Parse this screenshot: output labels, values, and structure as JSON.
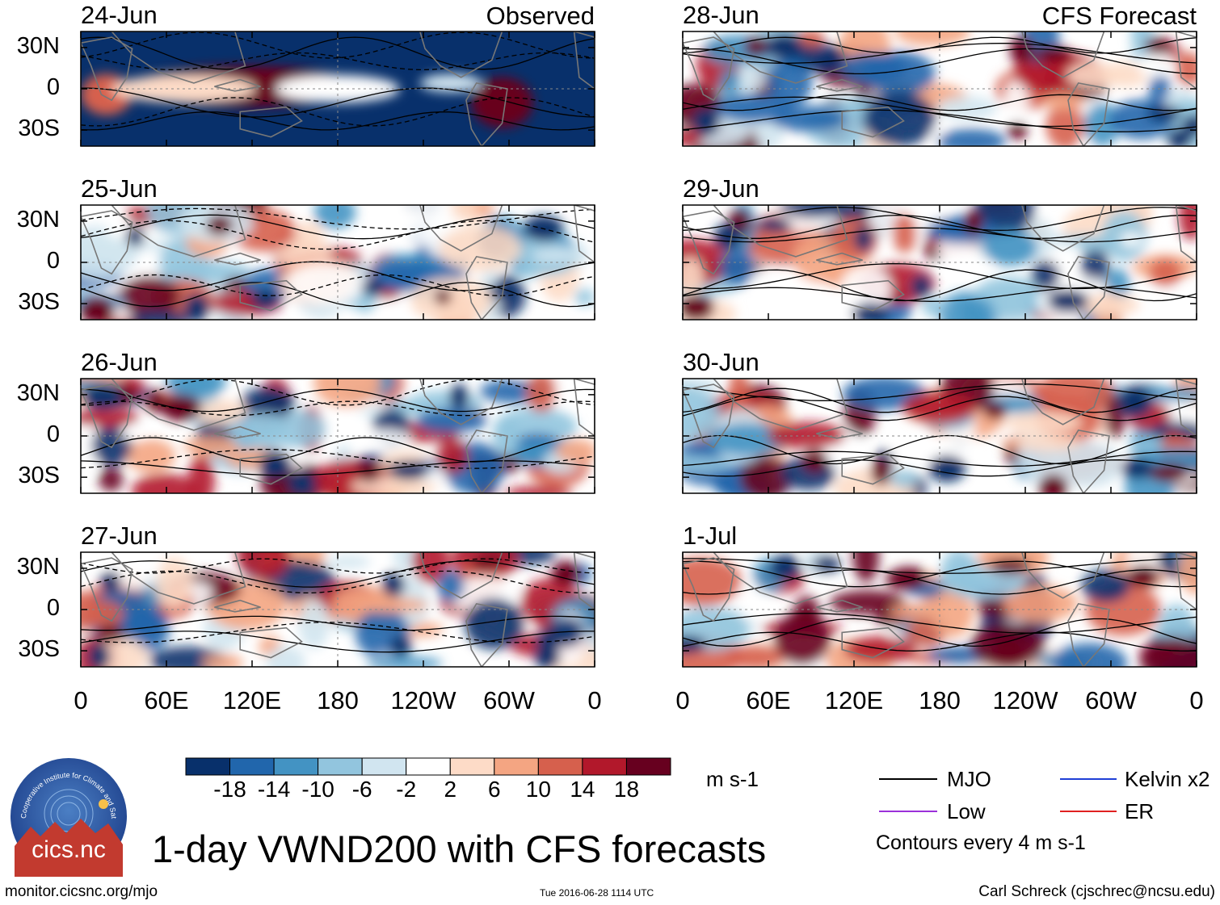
{
  "title": "1-day VWND200 with CFS forecasts",
  "website": "monitor.cicsnc.org/mjo",
  "timestamp": "Tue 2016-06-28 1114 UTC",
  "author": "Carl Schreck (cjschrec@ncsu.edu)",
  "logo": {
    "arc_text": "Cooperative Institute for Climate and Satellites",
    "name": "cics.nc"
  },
  "colors": {
    "bins": [
      "#08306b",
      "#2166ac",
      "#4393c3",
      "#92c5de",
      "#d1e5f0",
      "#ffffff",
      "#fddbc7",
      "#f4a582",
      "#d6604d",
      "#b2182b",
      "#67001f"
    ],
    "land": "#777777",
    "mjo": "#000000",
    "kelvin": "#1f3fd6",
    "low": "#9b30d9",
    "er": "#e02020"
  },
  "chart_data": {
    "type": "heatmap",
    "variable": "VWND200",
    "units": "m s-1",
    "colorbar": {
      "levels": [
        -18,
        -14,
        -10,
        -6,
        -2,
        2,
        6,
        10,
        14,
        18
      ],
      "labels": [
        "-18",
        "-14",
        "-10",
        "-6",
        "-2",
        "2",
        "6",
        "10",
        "14",
        "18"
      ]
    },
    "x_ticks": [
      "0",
      "60E",
      "120E",
      "180",
      "120W",
      "60W",
      "0"
    ],
    "y_ticks": [
      "30N",
      "0",
      "30S"
    ],
    "columns": [
      {
        "header": "Observed",
        "panels": [
          "24-Jun",
          "25-Jun",
          "26-Jun",
          "27-Jun"
        ]
      },
      {
        "header": "CFS Forecast",
        "panels": [
          "28-Jun",
          "29-Jun",
          "30-Jun",
          "1-Jul"
        ]
      }
    ],
    "legend": {
      "entries": [
        {
          "name": "MJO",
          "color": "#000000"
        },
        {
          "name": "Kelvin x2",
          "color": "#1f3fd6"
        },
        {
          "name": "Low",
          "color": "#9b30d9"
        },
        {
          "name": "ER",
          "color": "#e02020"
        }
      ],
      "note": "Contours every 4 m s-1"
    }
  }
}
